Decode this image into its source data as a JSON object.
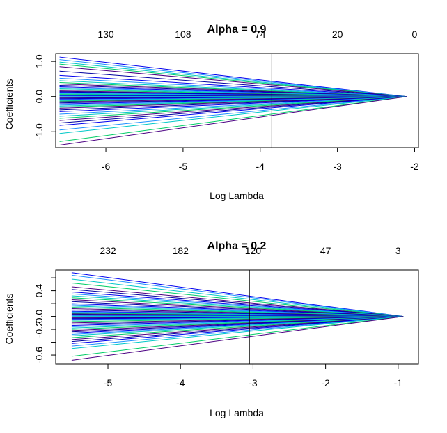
{
  "chart_data": [
    {
      "type": "line",
      "title": "Alpha   =   0.9",
      "xlabel": "Log Lambda",
      "ylabel": "Coefficients",
      "xlim": [
        -6.65,
        -1.95
      ],
      "ylim": [
        -1.45,
        1.22
      ],
      "x_ticks": [
        -6,
        -5,
        -4,
        -3,
        -2
      ],
      "x_tick_labels": [
        "-6",
        "-5",
        "-4",
        "-3",
        "-2"
      ],
      "y_ticks": [
        -1.0,
        0.0,
        1.0
      ],
      "y_tick_labels": [
        "-1.0",
        "0.0",
        "1.0"
      ],
      "top_axis_positions": [
        -6,
        -5,
        -4,
        -3,
        -2
      ],
      "top_axis_labels": [
        "130",
        "108",
        "74",
        "20",
        "0"
      ],
      "x_min": -6.6,
      "x_zero": -2.1,
      "vline_x": -3.85,
      "colors": [
        "#0000ee",
        "#1e90ff",
        "#00c8c8",
        "#00cd66",
        "#4b0082",
        "#0000a0"
      ],
      "series_start": [
        1.12,
        1.05,
        0.98,
        0.92,
        0.85,
        0.72,
        0.6,
        0.52,
        0.45,
        0.4,
        0.36,
        0.32,
        0.28,
        0.25,
        0.22,
        0.19,
        0.16,
        0.14,
        0.12,
        0.1,
        0.08,
        0.06,
        0.04,
        0.03,
        0.02,
        0.01,
        -0.01,
        -0.02,
        -0.03,
        -0.05,
        -0.07,
        -0.09,
        -0.11,
        -0.13,
        -0.15,
        -0.18,
        -0.21,
        -0.24,
        -0.27,
        -0.3,
        -0.33,
        -0.38,
        -0.43,
        -0.5,
        -0.56,
        -0.62,
        -0.68,
        -0.75,
        -0.82,
        -0.95,
        -1.05,
        -1.28,
        -1.38
      ]
    },
    {
      "type": "line",
      "title": "Alpha   =   0.2",
      "xlabel": "Log Lambda",
      "ylabel": "Coefficients",
      "xlim": [
        -5.72,
        -0.72
      ],
      "ylim": [
        -0.74,
        0.72
      ],
      "x_ticks": [
        -5,
        -4,
        -3,
        -2,
        -1
      ],
      "x_tick_labels": [
        "-5",
        "-4",
        "-3",
        "-2",
        "-1"
      ],
      "y_ticks": [
        -0.6,
        -0.4,
        -0.2,
        0.0,
        0.2,
        0.4,
        0.6
      ],
      "y_tick_labels": [
        "-0.6",
        "-0.2",
        "0.0",
        "0.4"
      ],
      "y_tick_label_values": [
        -0.6,
        -0.2,
        0.0,
        0.4
      ],
      "top_axis_positions": [
        -5,
        -4,
        -3,
        -2,
        -1
      ],
      "top_axis_labels": [
        "232",
        "182",
        "120",
        "47",
        "3"
      ],
      "x_min": -5.5,
      "x_zero": -0.93,
      "vline_x": -3.05,
      "colors": [
        "#0000ee",
        "#1e90ff",
        "#00c8c8",
        "#00cd66",
        "#4b0082",
        "#0000a0"
      ],
      "series_start": [
        0.68,
        0.64,
        0.58,
        0.52,
        0.46,
        0.42,
        0.38,
        0.35,
        0.32,
        0.29,
        0.26,
        0.23,
        0.2,
        0.18,
        0.16,
        0.14,
        0.12,
        0.1,
        0.08,
        0.07,
        0.06,
        0.05,
        0.04,
        0.03,
        0.02,
        0.01,
        0.0,
        -0.01,
        -0.02,
        -0.03,
        -0.04,
        -0.05,
        -0.06,
        -0.08,
        -0.1,
        -0.12,
        -0.14,
        -0.16,
        -0.18,
        -0.2,
        -0.22,
        -0.24,
        -0.26,
        -0.28,
        -0.3,
        -0.33,
        -0.36,
        -0.39,
        -0.42,
        -0.46,
        -0.5,
        -0.62,
        -0.68
      ]
    }
  ]
}
